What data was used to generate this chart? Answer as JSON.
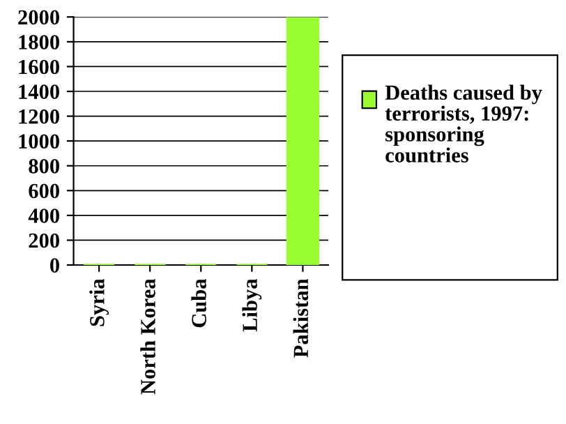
{
  "chart_data": {
    "type": "bar",
    "categories": [
      "Syria",
      "North Korea",
      "Cuba",
      "Libya",
      "Pakistan"
    ],
    "series": [
      {
        "name": "Deaths caused by terrorists, 1997: sponsoring countries",
        "color": "#99ff33",
        "values": [
          0,
          0,
          0,
          0,
          1990
        ]
      }
    ],
    "ylim": [
      0,
      2000
    ],
    "yticks": [
      0,
      200,
      400,
      600,
      800,
      1000,
      1200,
      1400,
      1600,
      1800,
      2000
    ],
    "grid": "y",
    "legend": "right"
  }
}
